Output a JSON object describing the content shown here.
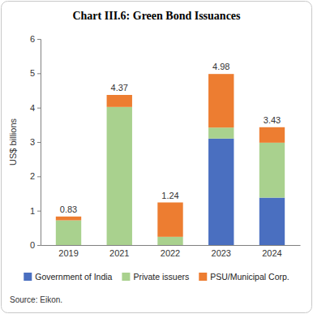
{
  "chart_data": {
    "type": "bar",
    "stacked": true,
    "title": "Chart III.6: Green Bond Issuances",
    "y_label": "US$ billions",
    "source": "Source: Eikon.",
    "categories": [
      "2019",
      "2021",
      "2022",
      "2023",
      "2024"
    ],
    "series": [
      {
        "name": "Government of India",
        "color": "#4a6fc0",
        "values": [
          0,
          0,
          0,
          3.1,
          1.38
        ]
      },
      {
        "name": "Private issuers",
        "color": "#a9d18e",
        "values": [
          0.72,
          4.02,
          0.24,
          0.32,
          1.6
        ]
      },
      {
        "name": "PSU/Municipal Corp.",
        "color": "#ed7d31",
        "values": [
          0.11,
          0.35,
          1.0,
          1.56,
          0.45
        ]
      }
    ],
    "totals": [
      0.83,
      4.37,
      1.24,
      4.98,
      3.43
    ],
    "ylim": [
      0,
      6
    ],
    "yticks": [
      0,
      1,
      2,
      3,
      4,
      5,
      6
    ],
    "grid": false,
    "legend": "bottom"
  }
}
